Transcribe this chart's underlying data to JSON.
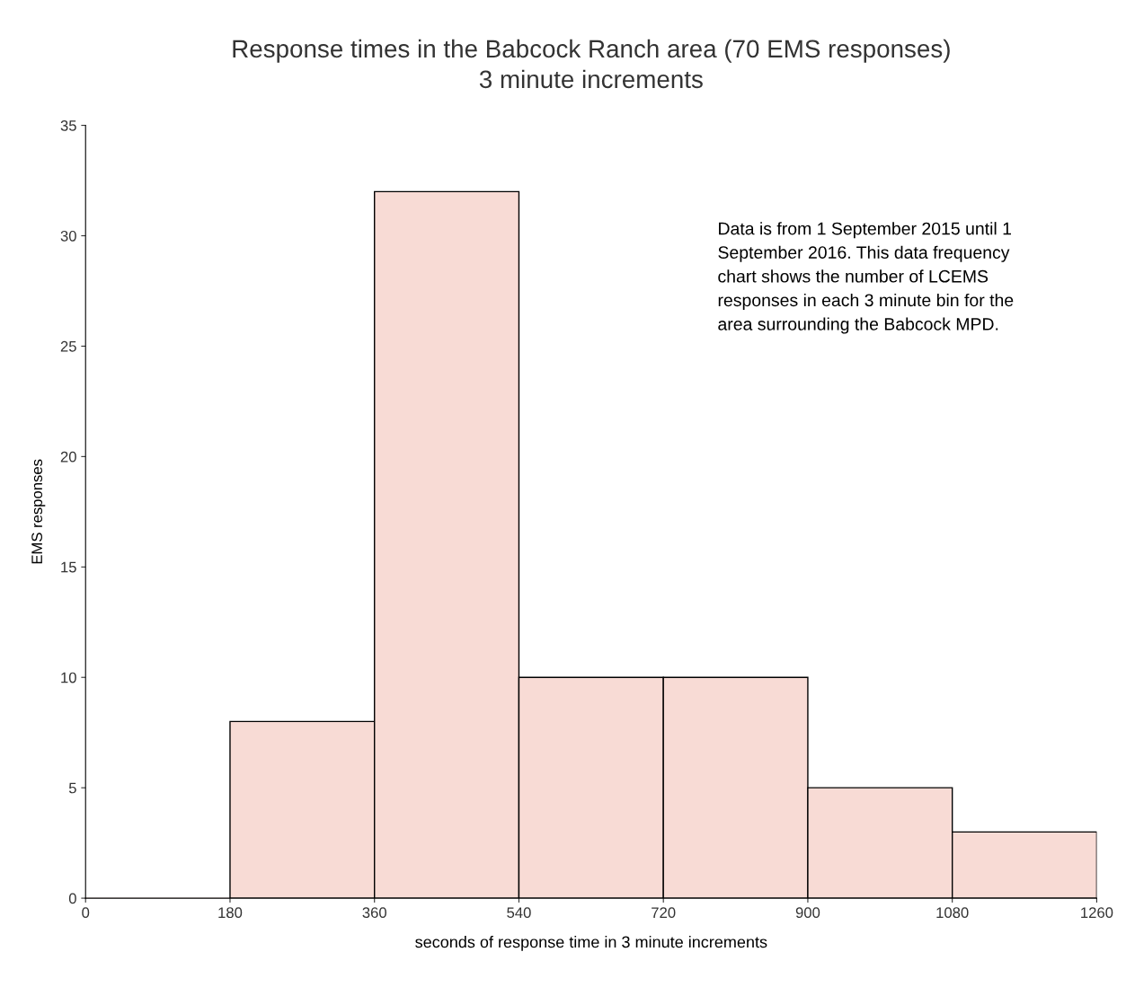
{
  "chart_data": {
    "type": "histogram",
    "title": "Response times in the Babcock Ranch area (70 EMS responses)\n3 minute increments",
    "xlabel": "seconds of response time in 3 minute increments",
    "ylabel": "EMS responses",
    "bins": [
      0,
      180,
      360,
      540,
      720,
      900,
      1080,
      1260
    ],
    "values": [
      0,
      8,
      32,
      10,
      10,
      5,
      3
    ],
    "color": "#f8dbd5",
    "xlim": [
      0,
      1260
    ],
    "xticks": [
      0,
      180,
      360,
      540,
      720,
      900,
      1080,
      1260
    ],
    "ylim": [
      0,
      35
    ],
    "yticks": [
      0,
      5,
      10,
      15,
      20,
      25,
      30,
      35
    ],
    "grid": false,
    "legend": false,
    "annotations": [
      "Data is from 1 September 2015 until 1\nSeptember 2016. This data frequency\nchart shows the number of LCEMS\nresponses in each 3 minute bin for the\narea surrounding the Babcock MPD."
    ]
  }
}
